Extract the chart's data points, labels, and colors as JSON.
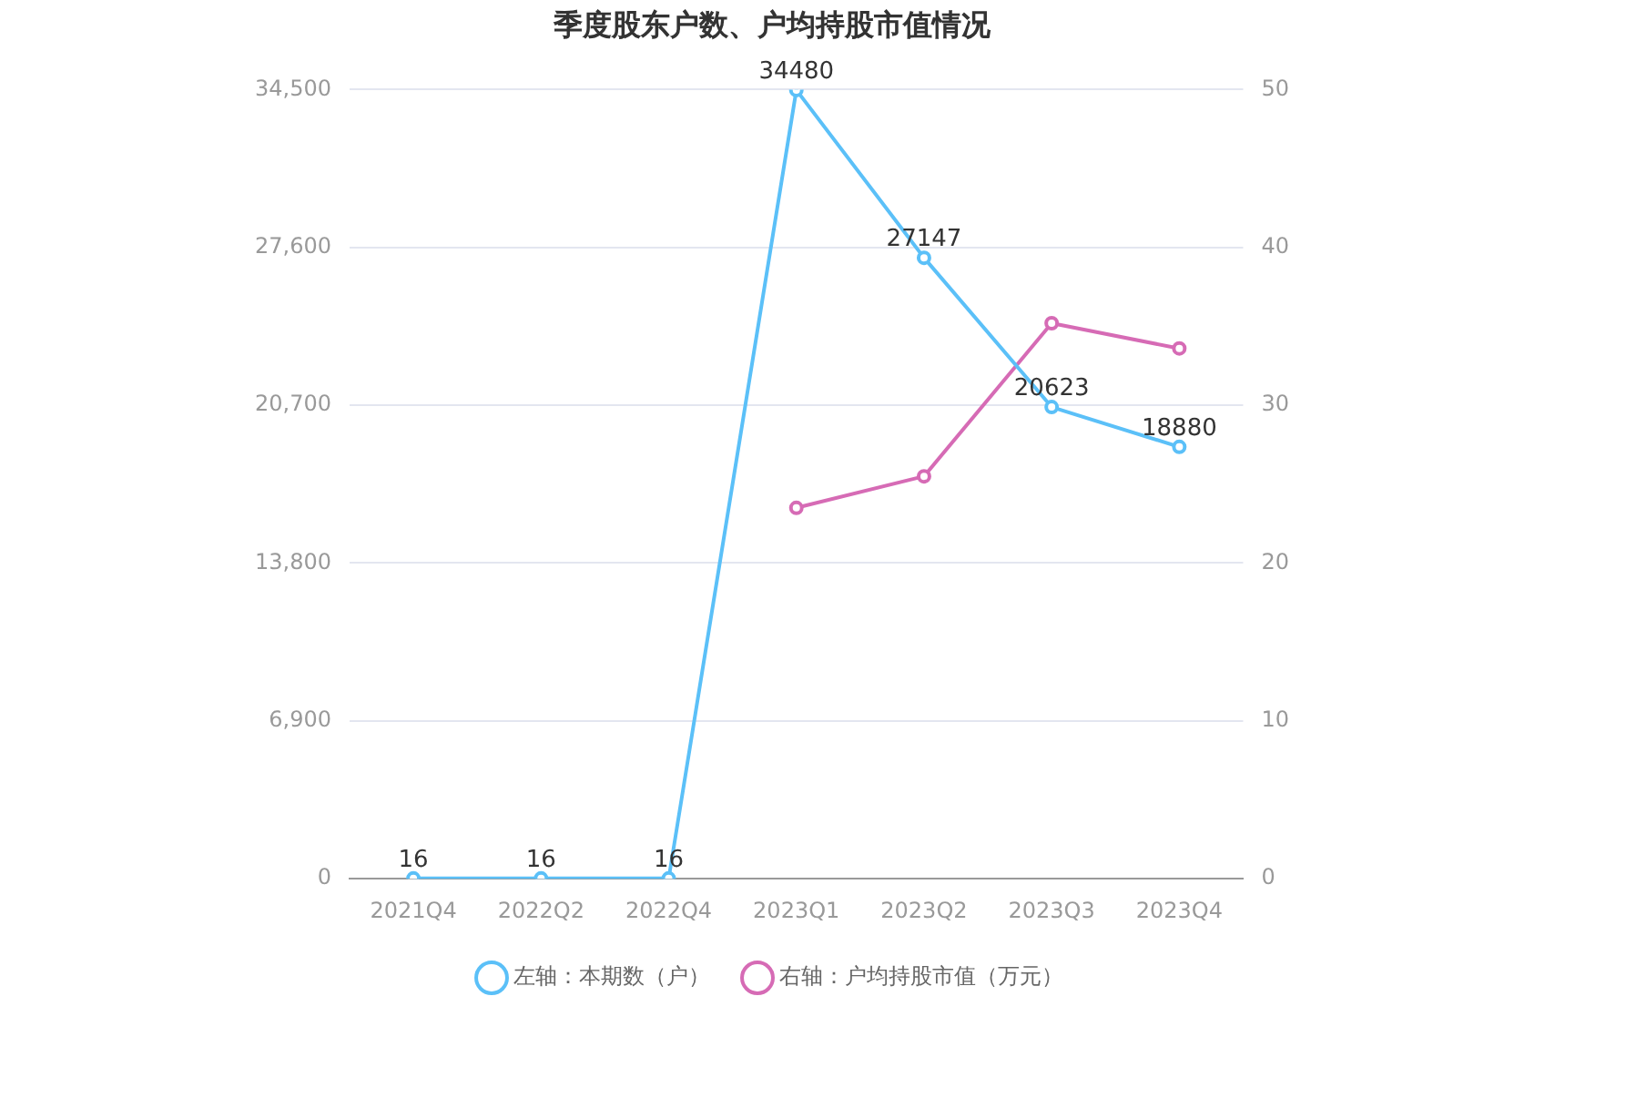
{
  "chart_data": {
    "type": "line",
    "title": "季度股东户数、户均持股市值情况",
    "categories": [
      "2021Q4",
      "2022Q2",
      "2022Q4",
      "2023Q1",
      "2023Q2",
      "2023Q3",
      "2023Q4"
    ],
    "series": [
      {
        "name": "左轴：本期数（户）",
        "color": "#5bc0f8",
        "values": [
          16,
          16,
          16,
          34480,
          27147,
          20623,
          18880
        ],
        "value_labels": [
          "16",
          "16",
          "16",
          "34480",
          "27147",
          "20623",
          "18880"
        ]
      },
      {
        "name": "右轴：户均持股市值（万元）",
        "color": "#d66bb5",
        "axis": "y2",
        "values": [
          null,
          null,
          null,
          23.5,
          25.5,
          35.2,
          33.6
        ]
      }
    ],
    "ylim": [
      0,
      34500
    ],
    "yticks": [
      0,
      {
        "value": 6900,
        "label": "6,900"
      },
      {
        "value": 13800,
        "label": "13,800"
      },
      {
        "value": 20700,
        "label": "20,700"
      },
      {
        "value": 27600,
        "label": "27,600"
      },
      {
        "value": 34500,
        "label": "34,500"
      }
    ],
    "y2lim": [
      0,
      50
    ],
    "y2ticks": [
      0,
      10,
      20,
      30,
      40,
      50
    ],
    "grid": "y",
    "legend": "bottom",
    "marker": "circle",
    "line_style": "solid"
  }
}
